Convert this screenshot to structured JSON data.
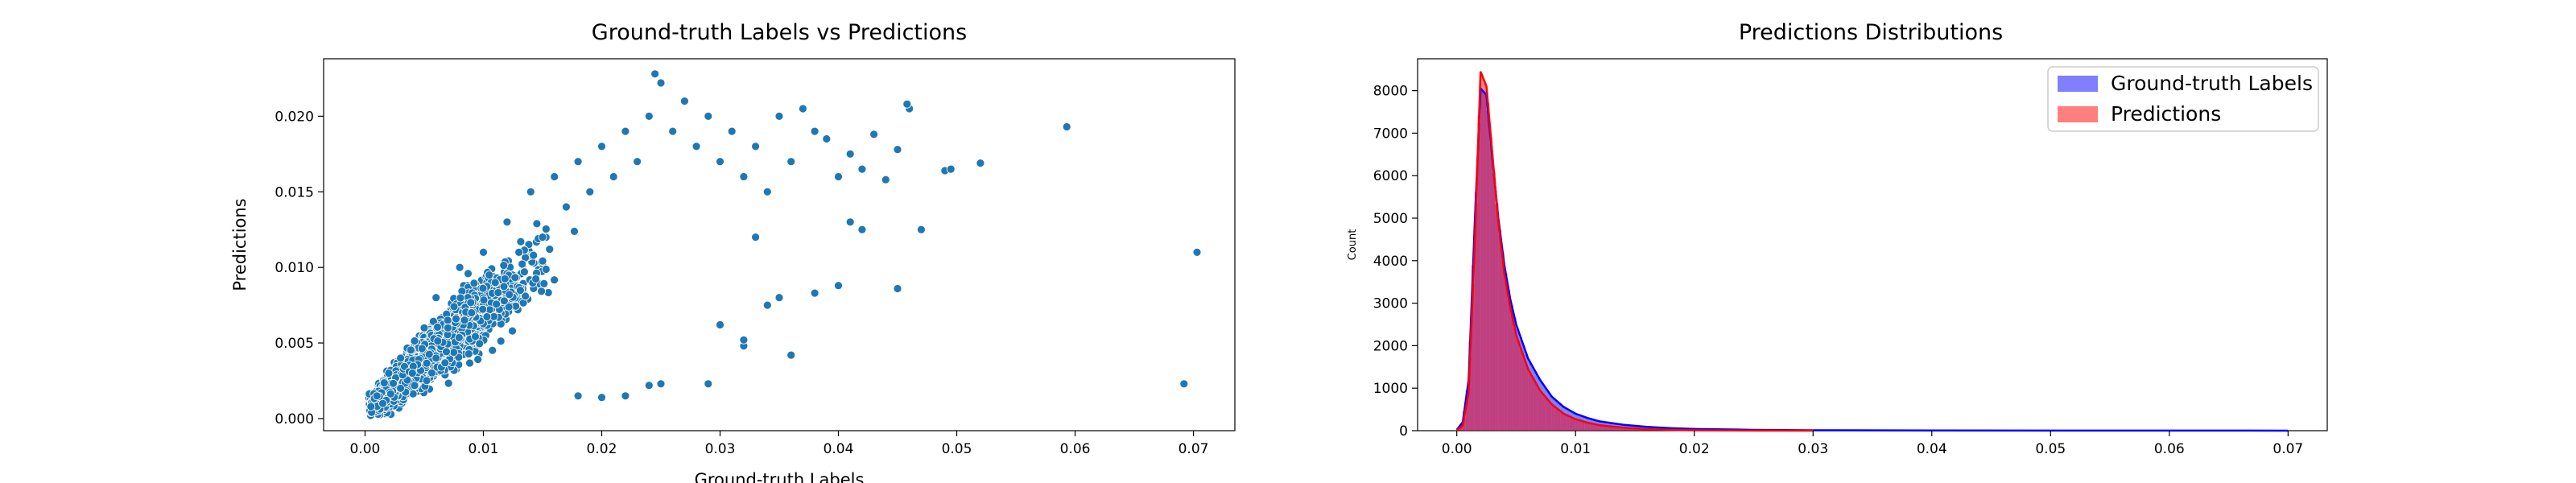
{
  "chart_data": [
    {
      "type": "scatter",
      "title": "Ground-truth Labels vs Predictions",
      "xlabel": "Ground-truth Labels",
      "ylabel": "Predictions",
      "xlim": [
        -0.0035,
        0.0735
      ],
      "ylim": [
        -0.0008,
        0.0238
      ],
      "xticks": [
        "0.00",
        "0.01",
        "0.02",
        "0.03",
        "0.04",
        "0.05",
        "0.06",
        "0.07"
      ],
      "yticks": [
        "0.000",
        "0.005",
        "0.010",
        "0.015",
        "0.020"
      ],
      "color": "#1f77b4",
      "grid": false,
      "points": [
        [
          0.0005,
          0.0008
        ],
        [
          0.001,
          0.0015
        ],
        [
          0.0015,
          0.001
        ],
        [
          0.002,
          0.003
        ],
        [
          0.003,
          0.002
        ],
        [
          0.003,
          0.004
        ],
        [
          0.004,
          0.003
        ],
        [
          0.005,
          0.006
        ],
        [
          0.006,
          0.004
        ],
        [
          0.006,
          0.008
        ],
        [
          0.007,
          0.006
        ],
        [
          0.008,
          0.01
        ],
        [
          0.009,
          0.007
        ],
        [
          0.01,
          0.011
        ],
        [
          0.011,
          0.009
        ],
        [
          0.012,
          0.013
        ],
        [
          0.013,
          0.011
        ],
        [
          0.014,
          0.015
        ],
        [
          0.015,
          0.012
        ],
        [
          0.016,
          0.016
        ],
        [
          0.017,
          0.014
        ],
        [
          0.018,
          0.017
        ],
        [
          0.019,
          0.015
        ],
        [
          0.02,
          0.018
        ],
        [
          0.021,
          0.016
        ],
        [
          0.022,
          0.019
        ],
        [
          0.023,
          0.017
        ],
        [
          0.024,
          0.02
        ],
        [
          0.0245,
          0.0228
        ],
        [
          0.025,
          0.0222
        ],
        [
          0.026,
          0.019
        ],
        [
          0.027,
          0.021
        ],
        [
          0.028,
          0.018
        ],
        [
          0.029,
          0.02
        ],
        [
          0.03,
          0.017
        ],
        [
          0.031,
          0.019
        ],
        [
          0.032,
          0.016
        ],
        [
          0.033,
          0.018
        ],
        [
          0.034,
          0.015
        ],
        [
          0.035,
          0.02
        ],
        [
          0.036,
          0.017
        ],
        [
          0.037,
          0.0205
        ],
        [
          0.038,
          0.019
        ],
        [
          0.039,
          0.0185
        ],
        [
          0.04,
          0.016
        ],
        [
          0.041,
          0.0175
        ],
        [
          0.042,
          0.0165
        ],
        [
          0.043,
          0.0188
        ],
        [
          0.044,
          0.0158
        ],
        [
          0.045,
          0.0178
        ],
        [
          0.046,
          0.0205
        ],
        [
          0.0458,
          0.0208
        ],
        [
          0.049,
          0.0164
        ],
        [
          0.0495,
          0.0165
        ],
        [
          0.052,
          0.0169
        ],
        [
          0.0593,
          0.0193
        ],
        [
          0.0692,
          0.0023
        ],
        [
          0.0703,
          0.011
        ],
        [
          0.018,
          0.0015
        ],
        [
          0.02,
          0.0014
        ],
        [
          0.022,
          0.0015
        ],
        [
          0.024,
          0.0022
        ],
        [
          0.025,
          0.0023
        ],
        [
          0.029,
          0.0023
        ],
        [
          0.032,
          0.0048
        ],
        [
          0.032,
          0.0052
        ],
        [
          0.036,
          0.0042
        ],
        [
          0.038,
          0.0083
        ],
        [
          0.04,
          0.0088
        ],
        [
          0.045,
          0.0086
        ],
        [
          0.034,
          0.0075
        ],
        [
          0.035,
          0.008
        ],
        [
          0.03,
          0.0062
        ],
        [
          0.033,
          0.012
        ],
        [
          0.042,
          0.0125
        ],
        [
          0.041,
          0.013
        ],
        [
          0.047,
          0.0125
        ]
      ]
    },
    {
      "type": "histogram",
      "title": "Predictions Distributions",
      "xlabel": "",
      "ylabel": "Count",
      "xlim": [
        -0.0033,
        0.0733
      ],
      "ylim": [
        0,
        8750
      ],
      "xticks": [
        "0.00",
        "0.01",
        "0.02",
        "0.03",
        "0.04",
        "0.05",
        "0.06",
        "0.07"
      ],
      "yticks": [
        "0",
        "1000",
        "2000",
        "3000",
        "4000",
        "5000",
        "6000",
        "7000",
        "8000"
      ],
      "legend": {
        "placement": "top-right"
      },
      "series": [
        {
          "name": "Ground-truth Labels",
          "color": "#0000ff",
          "x": [
            0.0,
            0.0005,
            0.001,
            0.0015,
            0.002,
            0.0025,
            0.003,
            0.0035,
            0.004,
            0.0045,
            0.005,
            0.006,
            0.007,
            0.008,
            0.009,
            0.01,
            0.011,
            0.012,
            0.014,
            0.016,
            0.018,
            0.02,
            0.025,
            0.03,
            0.04,
            0.05,
            0.06,
            0.07
          ],
          "values": [
            20,
            200,
            1200,
            4800,
            8050,
            7900,
            6400,
            5000,
            3900,
            3100,
            2500,
            1700,
            1200,
            800,
            560,
            400,
            300,
            220,
            140,
            90,
            60,
            40,
            20,
            10,
            5,
            3,
            2,
            1
          ]
        },
        {
          "name": "Predictions",
          "color": "#ff0000",
          "x": [
            0.0,
            0.0005,
            0.001,
            0.0015,
            0.002,
            0.0025,
            0.003,
            0.0035,
            0.004,
            0.0045,
            0.005,
            0.006,
            0.007,
            0.008,
            0.009,
            0.01,
            0.011,
            0.012,
            0.014,
            0.016,
            0.018,
            0.02,
            0.025,
            0.03
          ],
          "values": [
            10,
            120,
            900,
            4300,
            8450,
            8100,
            6500,
            4900,
            3700,
            2900,
            2250,
            1450,
            950,
            620,
            400,
            270,
            190,
            130,
            70,
            35,
            18,
            9,
            3,
            1
          ]
        }
      ]
    }
  ]
}
